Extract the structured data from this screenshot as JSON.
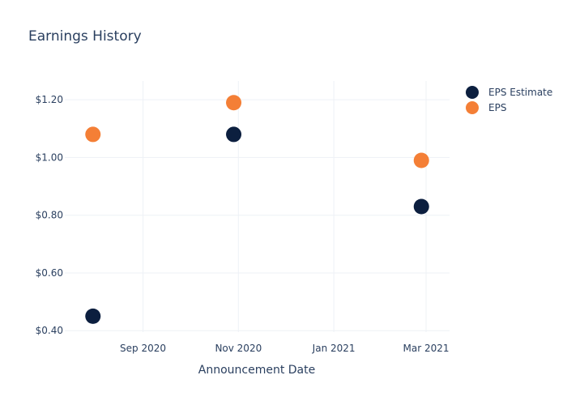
{
  "chart_data": {
    "type": "scatter",
    "title": "Earnings History",
    "xlabel": "Announcement Date",
    "ylabel": "",
    "x_ticks": [
      {
        "date": "2020-09-01",
        "label": "Sep 2020"
      },
      {
        "date": "2020-11-01",
        "label": "Nov 2020"
      },
      {
        "date": "2021-01-01",
        "label": "Jan 2021"
      },
      {
        "date": "2021-03-01",
        "label": "Mar 2021"
      }
    ],
    "xlim": [
      "2020-07-13",
      "2021-03-16"
    ],
    "y_ticks": [
      {
        "value": 0.4,
        "label": "$0.40"
      },
      {
        "value": 0.6,
        "label": "$0.60"
      },
      {
        "value": 0.8,
        "label": "$0.80"
      },
      {
        "value": 1.0,
        "label": "$1.00"
      },
      {
        "value": 1.2,
        "label": "$1.20"
      }
    ],
    "ylim": [
      0.395,
      1.265
    ],
    "grid": true,
    "legend_position": "top-right",
    "series": [
      {
        "name": "EPS Estimate",
        "color": "#0c1f3f",
        "x": [
          "2020-07-31",
          "2020-10-29",
          "2021-02-26"
        ],
        "y": [
          0.45,
          1.08,
          0.83
        ]
      },
      {
        "name": "EPS",
        "color": "#f47f36",
        "x": [
          "2020-07-31",
          "2020-10-29",
          "2021-02-26"
        ],
        "y": [
          1.08,
          1.19,
          0.99
        ]
      }
    ]
  }
}
